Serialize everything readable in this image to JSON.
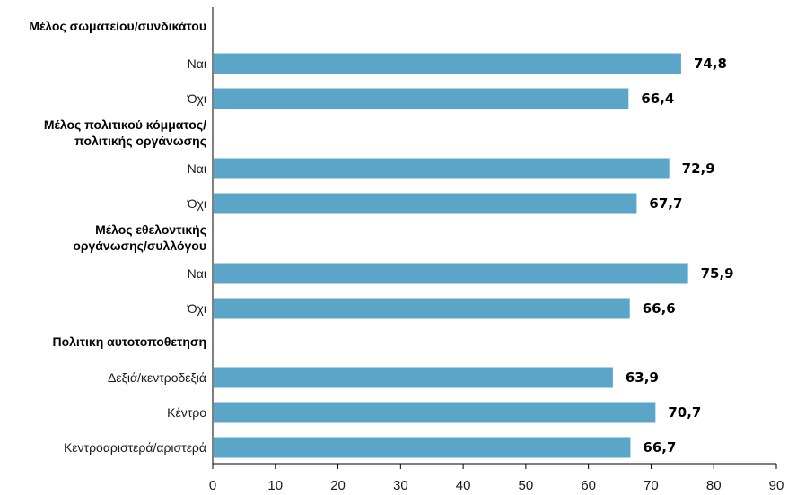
{
  "chart_data": {
    "type": "bar",
    "orientation": "horizontal",
    "bar_color": "#5ba5c8",
    "xlim": [
      0,
      90
    ],
    "x_ticks": [
      "0",
      "10",
      "20",
      "30",
      "40",
      "50",
      "60",
      "70",
      "80",
      "90"
    ],
    "grid": false,
    "legend": "none",
    "rows": [
      {
        "kind": "group",
        "label": "Μέλος σωματείου/συνδικάτου"
      },
      {
        "kind": "bar",
        "label": "Ναι",
        "value": 74.8,
        "value_label": "74,8"
      },
      {
        "kind": "bar",
        "label": "Όχι",
        "value": 66.4,
        "value_label": "66,4"
      },
      {
        "kind": "group",
        "label": "Μέλος πολιτικού κόμματος/ πολιτικής οργάνωσης"
      },
      {
        "kind": "bar",
        "label": "Ναι",
        "value": 72.9,
        "value_label": "72,9"
      },
      {
        "kind": "bar",
        "label": "Όχι",
        "value": 67.7,
        "value_label": "67,7"
      },
      {
        "kind": "group",
        "label": "Μέλος εθελοντικής οργάνωσης/συλλόγου"
      },
      {
        "kind": "bar",
        "label": "Ναι",
        "value": 75.9,
        "value_label": "75,9"
      },
      {
        "kind": "bar",
        "label": "Όχι",
        "value": 66.6,
        "value_label": "66,6"
      },
      {
        "kind": "group",
        "label": "Πολιτικη αυτοτοποθετηση"
      },
      {
        "kind": "bar",
        "label": "Δεξιά/κεντροδεξιά",
        "value": 63.9,
        "value_label": "63,9"
      },
      {
        "kind": "bar",
        "label": "Κέντρο",
        "value": 70.7,
        "value_label": "70,7"
      },
      {
        "kind": "bar",
        "label": "Κεντροαριστερά/αριστερά",
        "value": 66.7,
        "value_label": "66,7"
      }
    ]
  }
}
